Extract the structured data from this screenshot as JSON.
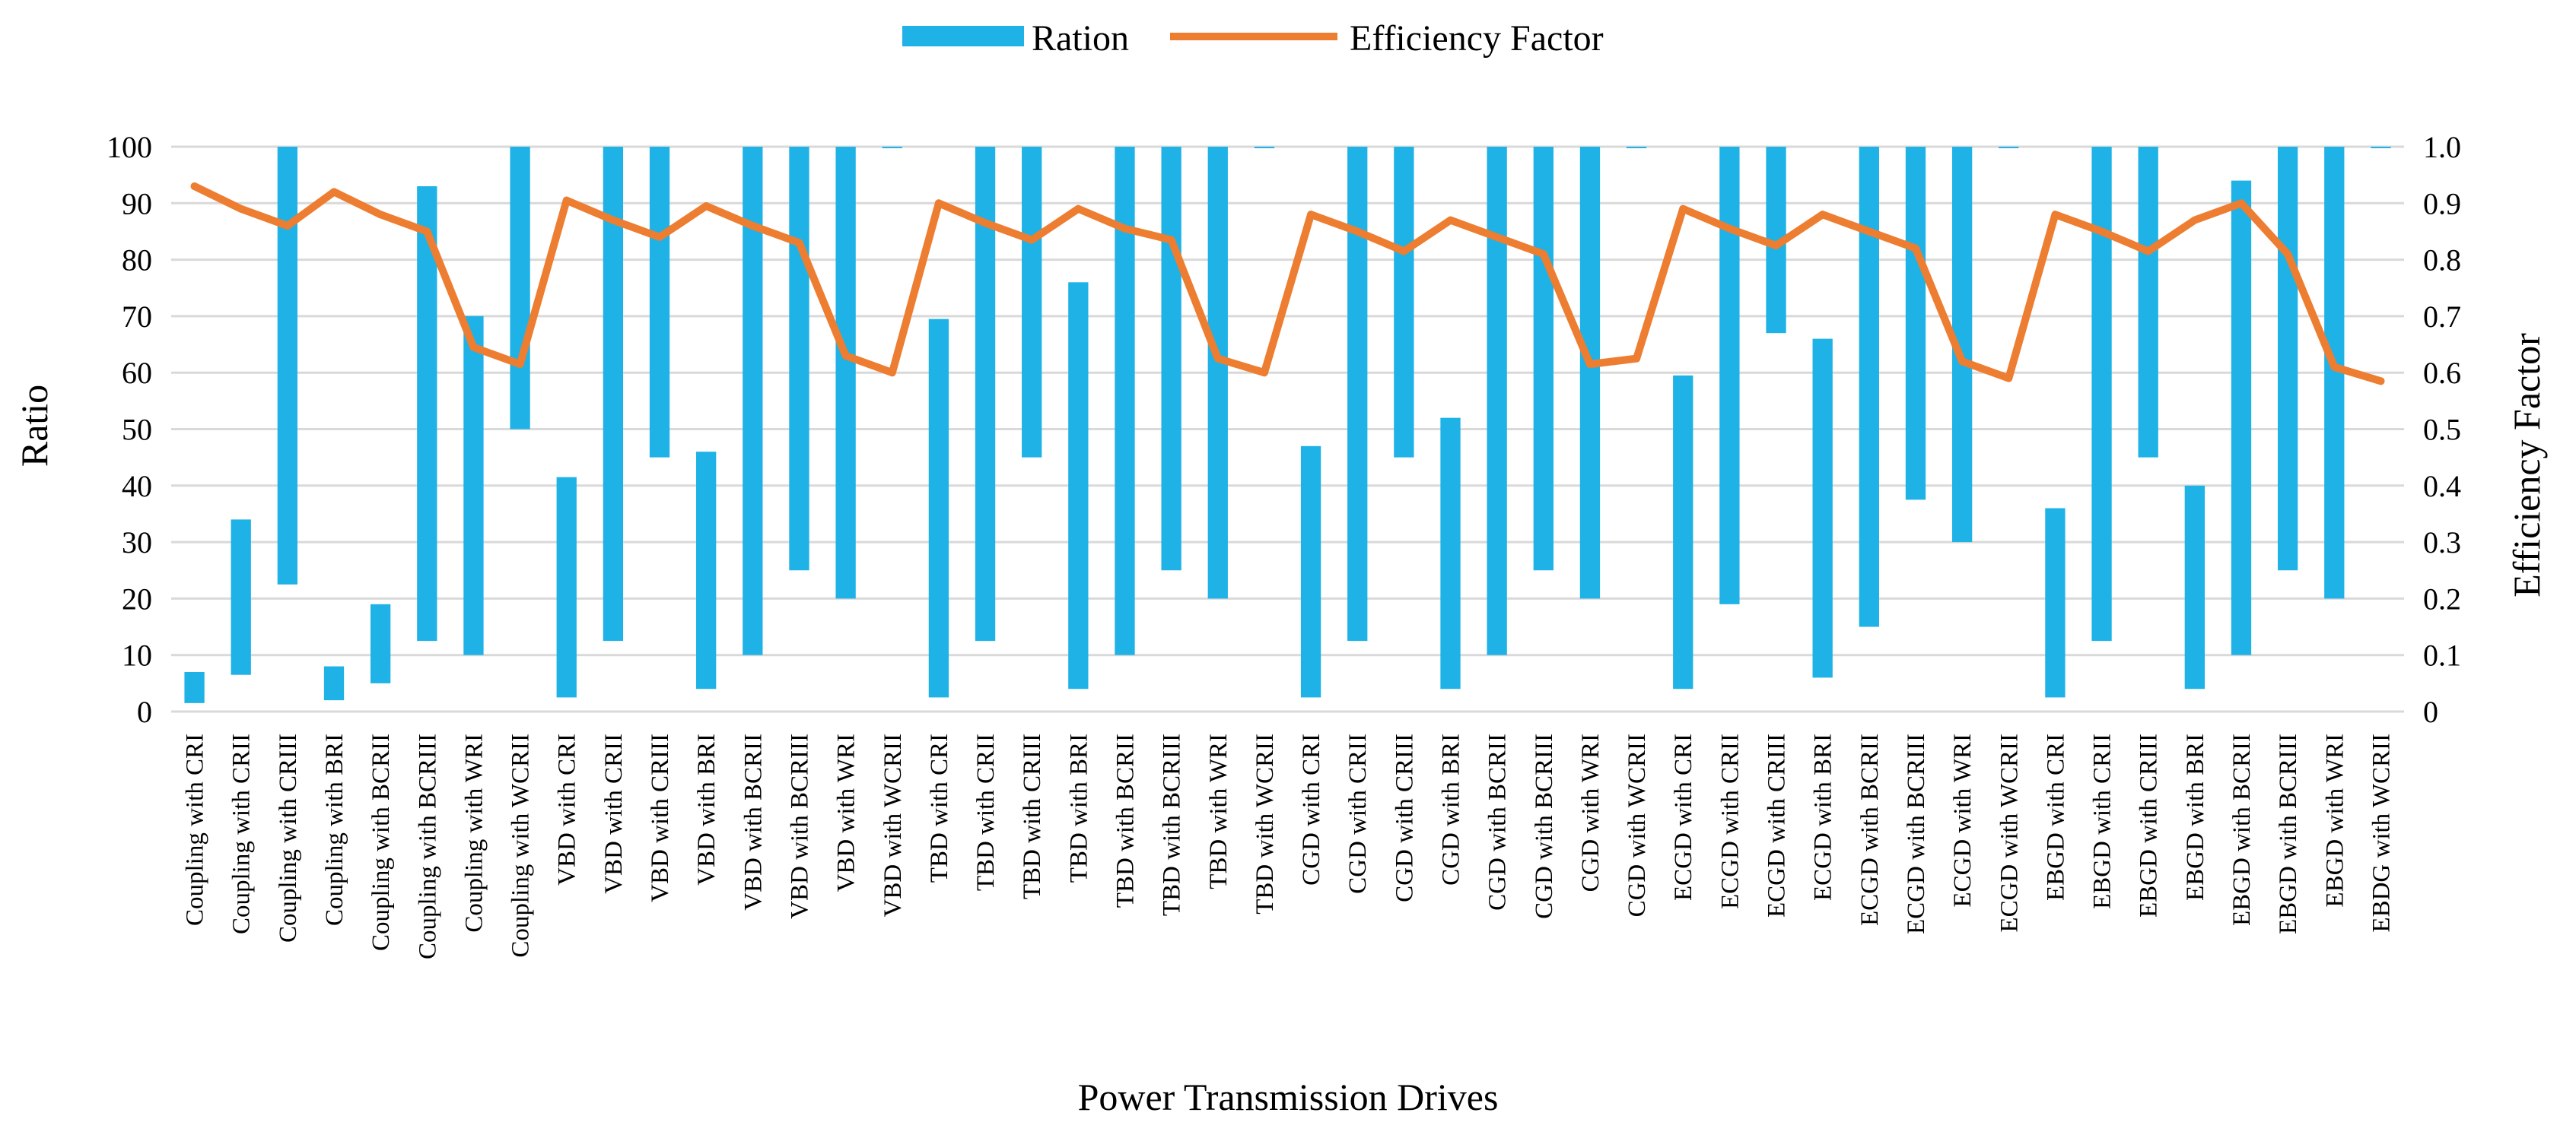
{
  "chart_data": {
    "type": "bar",
    "subtype": "floating-bar-with-line",
    "xlabel": "Power Transmission Drives",
    "ylabel": "Ratio",
    "y2label": "Efficiency Factor",
    "ylim": [
      0,
      100
    ],
    "y2lim": [
      0,
      1.0
    ],
    "yticks": [
      "0",
      "10",
      "20",
      "30",
      "40",
      "50",
      "60",
      "70",
      "80",
      "90",
      "100"
    ],
    "y2ticks": [
      "0",
      "0.1",
      "0.2",
      "0.3",
      "0.4",
      "0.5",
      "0.6",
      "0.7",
      "0.8",
      "0.9",
      "1.0"
    ],
    "legend": {
      "position": "top-center",
      "items": [
        "Ration",
        "Efficiency Factor"
      ]
    },
    "colors": {
      "bar": "#1FB2E6",
      "line": "#ED7D31",
      "grid": "#D9D9D9"
    },
    "categories": [
      "Coupling with CRI",
      "Coupling with CRII",
      "Coupling with CRIII",
      "Coupling with BRI",
      "Coupling with BCRII",
      "Coupling with BCRIII",
      "Coupling with WRI",
      "Coupling with WCRII",
      "VBD with CRI",
      "VBD with CRII",
      "VBD with CRIII",
      "VBD with BRI",
      "VBD with BCRII",
      "VBD with BCRIII",
      "VBD with WRI",
      "VBD with WCRII",
      "TBD with CRI",
      "TBD with CRII",
      "TBD with CRIII",
      "TBD with BRI",
      "TBD with BCRII",
      "TBD with BCRIII",
      "TBD with WRI",
      "TBD with WCRII",
      "CGD with CRI",
      "CGD with CRII",
      "CGD with CRIII",
      "CGD with BRI",
      "CGD with BCRII",
      "CGD with BCRIII",
      "CGD with WRI",
      "CGD with WCRII",
      "ECGD with CRI",
      "ECGD with CRII",
      "ECGD with CRIII",
      "ECGD with BRI",
      "ECGD with BCRII",
      "ECGD with BCRIII",
      "ECGD with WRI",
      "ECGD with WCRII",
      "EBGD with CRI",
      "EBGD with CRII",
      "EBGD with CRIII",
      "EBGD with BRI",
      "EBGD with BCRII",
      "EBGD with BCRIII",
      "EBGD with WRI",
      "EBDG with WCRII"
    ],
    "series": [
      {
        "name": "Ration",
        "kind": "floating-bar",
        "low": [
          1.5,
          6.5,
          22.5,
          2,
          5,
          12.5,
          10,
          50,
          2.5,
          12.5,
          45,
          4,
          10,
          25,
          20,
          100,
          2.5,
          12.5,
          45,
          4,
          10,
          25,
          20,
          100,
          2.5,
          12.5,
          45,
          4,
          10,
          25,
          20,
          100,
          4,
          19,
          67,
          6,
          15,
          37.5,
          30,
          100,
          2.5,
          12.5,
          45,
          4,
          10,
          25,
          20,
          100
        ],
        "high": [
          7,
          34,
          100,
          8,
          19,
          93,
          70,
          100,
          41.5,
          100,
          100,
          46,
          100,
          100,
          100,
          100,
          69.5,
          100,
          100,
          76,
          100,
          100,
          100,
          100,
          47,
          100,
          100,
          52,
          100,
          100,
          100,
          100,
          59.5,
          100,
          100,
          66,
          100,
          100,
          100,
          100,
          36,
          100,
          100,
          40,
          94,
          100,
          100,
          100
        ]
      },
      {
        "name": "Efficiency Factor",
        "kind": "line",
        "axis": "secondary",
        "values": [
          0.93,
          0.89,
          0.86,
          0.92,
          0.88,
          0.85,
          0.645,
          0.615,
          0.905,
          0.87,
          0.84,
          0.895,
          0.86,
          0.83,
          0.63,
          0.6,
          0.9,
          0.865,
          0.835,
          0.89,
          0.855,
          0.835,
          0.625,
          0.6,
          0.88,
          0.85,
          0.815,
          0.87,
          0.84,
          0.81,
          0.615,
          0.625,
          0.89,
          0.855,
          0.825,
          0.88,
          0.85,
          0.82,
          0.62,
          0.59,
          0.88,
          0.85,
          0.815,
          0.87,
          0.9,
          0.81,
          0.61,
          0.585
        ]
      }
    ]
  }
}
